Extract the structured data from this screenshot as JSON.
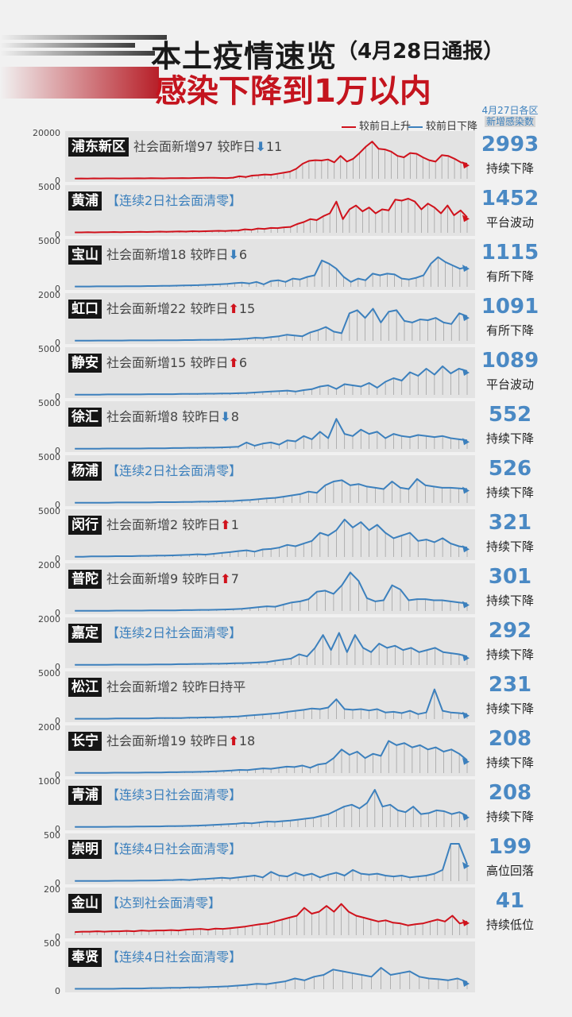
{
  "header": {
    "title_main": "本土疫情速览",
    "title_sub": "（4月28日通报）",
    "title_red": "感染下降到1万以内",
    "legend_up": "较前日上升",
    "legend_down": "较前日下降",
    "col_head_1": "4月27日各区",
    "col_head_2": "新增感染数",
    "colors": {
      "up": "#d0121c",
      "down": "#3c80bd"
    }
  },
  "chart_data": [
    {
      "type": "line",
      "name": "浦东新区",
      "trend": "up",
      "ymax": "20000",
      "ymin": "0",
      "total": "2993",
      "status": "持续下降",
      "annotation_text": "社会面新增97  较昨日",
      "arrow": "down",
      "change": "11",
      "values": [
        3,
        4,
        3,
        5,
        4,
        6,
        5,
        4,
        6,
        5,
        7,
        6,
        8,
        7,
        6,
        9,
        8,
        10,
        9,
        11,
        12,
        14,
        13,
        11,
        10,
        15,
        35,
        25,
        45,
        50,
        60,
        55,
        70,
        85,
        100,
        140,
        210,
        250,
        260,
        255,
        270,
        230,
        320,
        240,
        280,
        360,
        450,
        520,
        420,
        410,
        380,
        320,
        300,
        360,
        350,
        300,
        260,
        240,
        330,
        320,
        280,
        230,
        210
      ],
      "ylim": [
        0,
        600
      ]
    },
    {
      "type": "line",
      "name": "黄浦",
      "trend": "up",
      "ymax": "5000",
      "ymin": "0",
      "total": "1452",
      "status": "平台波动",
      "annotation_text": "【连续2日社会面清零】",
      "arrow": "",
      "change": "",
      "values": [
        2,
        2,
        3,
        2,
        3,
        3,
        4,
        3,
        4,
        4,
        5,
        4,
        5,
        6,
        5,
        6,
        7,
        6,
        8,
        7,
        8,
        9,
        10,
        9,
        11,
        12,
        18,
        15,
        22,
        20,
        25,
        24,
        28,
        30,
        45,
        55,
        70,
        65,
        85,
        100,
        160,
        70,
        120,
        140,
        110,
        130,
        100,
        120,
        115,
        170,
        165,
        175,
        160,
        120,
        150,
        130,
        100,
        140,
        90,
        115,
        80
      ],
      "ylim": [
        0,
        220
      ]
    },
    {
      "type": "line",
      "name": "宝山",
      "trend": "down",
      "ymax": "5000",
      "ymin": "0",
      "total": "1115",
      "status": "有所下降",
      "annotation_text": "社会面新增18  较昨日",
      "arrow": "down",
      "change": "6",
      "values": [
        2,
        2,
        2,
        3,
        3,
        3,
        3,
        4,
        4,
        4,
        5,
        5,
        6,
        6,
        7,
        8,
        9,
        10,
        12,
        14,
        16,
        18,
        22,
        25,
        20,
        30,
        15,
        35,
        40,
        30,
        50,
        45,
        60,
        70,
        160,
        140,
        110,
        60,
        30,
        50,
        40,
        80,
        70,
        80,
        75,
        50,
        45,
        55,
        70,
        140,
        180,
        150,
        130,
        110,
        120
      ],
      "ylim": [
        0,
        260
      ]
    },
    {
      "type": "line",
      "name": "虹口",
      "trend": "down",
      "ymax": "2000",
      "ymin": "0",
      "total": "1091",
      "status": "有所下降",
      "annotation_text": "社会面新增22  较昨日",
      "arrow": "up",
      "change": "15",
      "values": [
        1,
        1,
        1,
        2,
        2,
        2,
        2,
        3,
        3,
        3,
        3,
        4,
        4,
        4,
        5,
        5,
        6,
        6,
        7,
        8,
        10,
        12,
        15,
        20,
        18,
        25,
        30,
        40,
        35,
        30,
        55,
        70,
        90,
        60,
        50,
        180,
        200,
        150,
        210,
        120,
        190,
        200,
        130,
        120,
        140,
        135,
        150,
        120,
        110,
        180,
        160
      ],
      "ylim": [
        0,
        280
      ]
    },
    {
      "type": "line",
      "name": "静安",
      "trend": "down",
      "ymax": "5000",
      "ymin": "0",
      "total": "1089",
      "status": "平台波动",
      "annotation_text": "社会面新增15  较昨日",
      "arrow": "up",
      "change": "6",
      "values": [
        1,
        1,
        1,
        1,
        2,
        2,
        2,
        2,
        2,
        3,
        3,
        3,
        3,
        4,
        4,
        4,
        5,
        5,
        6,
        6,
        7,
        8,
        10,
        12,
        14,
        16,
        18,
        14,
        20,
        24,
        35,
        40,
        25,
        45,
        40,
        35,
        50,
        30,
        55,
        70,
        60,
        95,
        80,
        110,
        85,
        120,
        90,
        110,
        100
      ],
      "ylim": [
        0,
        180
      ]
    },
    {
      "type": "line",
      "name": "徐汇",
      "trend": "down",
      "ymax": "5000",
      "ymin": "0",
      "total": "552",
      "status": "持续下降",
      "annotation_text": "社会面新增8    较昨日",
      "arrow": "down",
      "change": "8",
      "values": [
        1,
        1,
        1,
        1,
        2,
        2,
        2,
        2,
        2,
        3,
        3,
        3,
        4,
        4,
        5,
        5,
        6,
        6,
        7,
        8,
        10,
        30,
        15,
        25,
        30,
        20,
        40,
        35,
        60,
        45,
        80,
        50,
        140,
        70,
        60,
        90,
        70,
        80,
        50,
        70,
        60,
        55,
        65,
        60,
        55,
        60,
        50,
        45,
        40
      ],
      "ylim": [
        0,
        200
      ]
    },
    {
      "type": "line",
      "name": "杨浦",
      "trend": "down",
      "ymax": "5000",
      "ymin": "0",
      "total": "526",
      "status": "持续下降",
      "annotation_text": "【连续2日社会面清零】",
      "arrow": "",
      "change": "",
      "values": [
        1,
        1,
        1,
        1,
        1,
        2,
        2,
        2,
        2,
        2,
        3,
        3,
        3,
        4,
        4,
        5,
        5,
        6,
        7,
        8,
        10,
        12,
        15,
        18,
        20,
        25,
        30,
        35,
        45,
        40,
        70,
        85,
        90,
        70,
        75,
        65,
        60,
        55,
        85,
        60,
        55,
        95,
        70,
        65,
        60,
        60,
        58,
        55
      ],
      "ylim": [
        0,
        170
      ]
    },
    {
      "type": "line",
      "name": "闵行",
      "trend": "down",
      "ymax": "5000",
      "ymin": "0",
      "total": "321",
      "status": "持续下降",
      "annotation_text": "社会面新增2    较昨日",
      "arrow": "up",
      "change": "1",
      "values": [
        1,
        1,
        2,
        2,
        2,
        3,
        3,
        3,
        4,
        4,
        5,
        5,
        6,
        7,
        8,
        10,
        9,
        12,
        15,
        18,
        22,
        25,
        20,
        28,
        30,
        35,
        45,
        40,
        50,
        60,
        90,
        80,
        100,
        140,
        110,
        130,
        100,
        120,
        90,
        70,
        80,
        90,
        60,
        65,
        55,
        70,
        50,
        40,
        35
      ],
      "ylim": [
        0,
        160
      ]
    },
    {
      "type": "line",
      "name": "普陀",
      "trend": "down",
      "ymax": "2000",
      "ymin": "0",
      "total": "301",
      "status": "持续下降",
      "annotation_text": "社会面新增9    较昨日",
      "arrow": "up",
      "change": "7",
      "values": [
        1,
        1,
        1,
        1,
        1,
        2,
        2,
        2,
        2,
        3,
        3,
        3,
        3,
        4,
        4,
        5,
        5,
        6,
        7,
        8,
        10,
        14,
        18,
        22,
        20,
        30,
        40,
        45,
        55,
        90,
        95,
        80,
        120,
        180,
        140,
        60,
        45,
        50,
        120,
        100,
        50,
        55,
        55,
        50,
        50,
        45,
        40,
        35
      ],
      "ylim": [
        0,
        200
      ]
    },
    {
      "type": "line",
      "name": "嘉定",
      "trend": "down",
      "ymax": "2000",
      "ymin": "0",
      "total": "292",
      "status": "持续下降",
      "annotation_text": "【连续2日社会面清零】",
      "arrow": "",
      "change": "",
      "values": [
        1,
        1,
        1,
        1,
        1,
        2,
        2,
        2,
        2,
        2,
        3,
        3,
        3,
        4,
        4,
        5,
        5,
        6,
        6,
        7,
        8,
        9,
        10,
        12,
        14,
        20,
        25,
        30,
        50,
        40,
        80,
        140,
        70,
        150,
        60,
        140,
        80,
        60,
        100,
        80,
        90,
        70,
        80,
        60,
        70,
        80,
        60,
        55,
        50,
        40
      ],
      "ylim": [
        0,
        200
      ]
    },
    {
      "type": "line",
      "name": "松江",
      "trend": "down",
      "ymax": "5000",
      "ymin": "0",
      "total": "231",
      "status": "持续下降",
      "annotation_text": "社会面新增2    较昨日持平",
      "arrow": "",
      "change": "",
      "values": [
        1,
        1,
        1,
        1,
        1,
        2,
        2,
        2,
        2,
        2,
        3,
        3,
        3,
        3,
        4,
        4,
        5,
        5,
        6,
        7,
        8,
        10,
        12,
        14,
        16,
        18,
        22,
        25,
        28,
        32,
        30,
        35,
        60,
        30,
        28,
        30,
        26,
        30,
        20,
        22,
        18,
        25,
        15,
        20,
        90,
        25,
        20,
        18,
        15
      ],
      "ylim": [
        0,
        130
      ]
    },
    {
      "type": "line",
      "name": "长宁",
      "trend": "down",
      "ymax": "2000",
      "ymin": "0",
      "total": "208",
      "status": "持续下降",
      "annotation_text": "社会面新增19 较昨日",
      "arrow": "up",
      "change": "18",
      "values": [
        1,
        1,
        1,
        1,
        1,
        2,
        2,
        2,
        2,
        3,
        3,
        3,
        4,
        4,
        5,
        5,
        6,
        7,
        8,
        10,
        12,
        15,
        14,
        18,
        22,
        20,
        25,
        30,
        28,
        35,
        25,
        40,
        45,
        70,
        110,
        85,
        100,
        70,
        90,
        80,
        150,
        130,
        140,
        120,
        130,
        110,
        120,
        100,
        110,
        90,
        60
      ],
      "ylim": [
        0,
        200
      ]
    },
    {
      "type": "line",
      "name": "青浦",
      "trend": "down",
      "ymax": "1000",
      "ymin": "0",
      "total": "208",
      "status": "持续下降",
      "annotation_text": "【连续3日社会面清零】",
      "arrow": "",
      "change": "",
      "values": [
        1,
        1,
        1,
        1,
        1,
        2,
        2,
        2,
        3,
        3,
        4,
        4,
        5,
        5,
        6,
        7,
        8,
        10,
        12,
        14,
        16,
        18,
        22,
        20,
        25,
        30,
        28,
        32,
        35,
        40,
        45,
        50,
        60,
        70,
        90,
        110,
        120,
        100,
        130,
        200,
        110,
        120,
        90,
        80,
        110,
        70,
        75,
        90,
        85,
        70,
        80,
        60
      ],
      "ylim": [
        0,
        230
      ]
    },
    {
      "type": "line",
      "name": "崇明",
      "trend": "down",
      "ymax": "500",
      "ymin": "0",
      "total": "199",
      "status": "高位回落",
      "annotation_text": "【连续4日社会面清零】",
      "arrow": "",
      "change": "",
      "values": [
        1,
        1,
        1,
        1,
        1,
        2,
        2,
        2,
        3,
        3,
        4,
        5,
        6,
        8,
        6,
        10,
        12,
        15,
        18,
        15,
        20,
        25,
        30,
        20,
        50,
        30,
        25,
        45,
        30,
        40,
        20,
        35,
        45,
        30,
        60,
        40,
        35,
        40,
        30,
        25,
        30,
        20,
        25,
        30,
        40,
        60,
        200,
        200,
        90
      ],
      "ylim": [
        0,
        230
      ]
    },
    {
      "type": "line",
      "name": "金山",
      "trend": "up",
      "ymax": "200",
      "ymin": "0",
      "total": "41",
      "status": "持续低位",
      "annotation_text": "【达到社会面清零】",
      "arrow": "",
      "change": "",
      "values": [
        8,
        9,
        9,
        10,
        9,
        10,
        10,
        11,
        10,
        12,
        11,
        12,
        12,
        13,
        12,
        14,
        15,
        16,
        14,
        17,
        16,
        18,
        20,
        22,
        25,
        28,
        30,
        35,
        40,
        45,
        50,
        70,
        55,
        60,
        75,
        60,
        80,
        60,
        50,
        45,
        40,
        35,
        38,
        32,
        30,
        25,
        28,
        30,
        35,
        40,
        35,
        50,
        30,
        35
      ],
      "ylim": [
        0,
        110
      ]
    },
    {
      "type": "line",
      "name": "奉贤",
      "trend": "down",
      "ymax": "500",
      "ymin": "0",
      "total": "",
      "status": "",
      "annotation_text": "【连续4日社会面清零】",
      "arrow": "",
      "change": "",
      "values": [
        1,
        1,
        1,
        1,
        1,
        2,
        2,
        2,
        3,
        3,
        4,
        4,
        5,
        5,
        6,
        7,
        8,
        10,
        12,
        15,
        14,
        18,
        22,
        30,
        25,
        35,
        40,
        55,
        50,
        45,
        40,
        35,
        60,
        40,
        45,
        50,
        35,
        30,
        28,
        25,
        30,
        20
      ],
      "ylim": [
        0,
        120
      ]
    }
  ]
}
